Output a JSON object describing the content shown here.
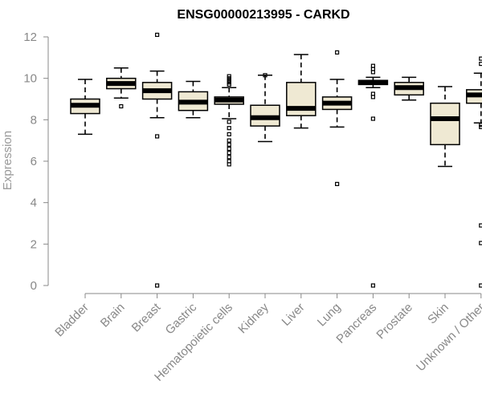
{
  "chart_data": {
    "type": "boxplot",
    "title": "ENSG00000213995 - CARKD",
    "xlabel": "",
    "ylabel": "Expression",
    "ylim": [
      0,
      12
    ],
    "yticks": [
      0,
      2,
      4,
      6,
      8,
      10,
      12
    ],
    "grid": false,
    "box_fill": "#efe9d3",
    "categories": [
      "Bladder",
      "Brain",
      "Breast",
      "Gastric",
      "Hematopoietic cells",
      "Kidney",
      "Liver",
      "Lung",
      "Pancreas",
      "Prostate",
      "Skin",
      "Unknown / Other"
    ],
    "boxes": [
      {
        "min": 7.3,
        "q1": 8.3,
        "median": 8.7,
        "q3": 9.0,
        "max": 9.95,
        "outliers": []
      },
      {
        "min": 9.05,
        "q1": 9.5,
        "median": 9.75,
        "q3": 10.0,
        "max": 10.5,
        "outliers": [
          8.65
        ]
      },
      {
        "min": 8.1,
        "q1": 9.0,
        "median": 9.4,
        "q3": 9.8,
        "max": 10.35,
        "outliers": [
          12.1,
          7.2,
          0.0
        ]
      },
      {
        "min": 8.1,
        "q1": 8.45,
        "median": 8.85,
        "q3": 9.35,
        "max": 9.85,
        "outliers": []
      },
      {
        "min": 8.05,
        "q1": 8.75,
        "median": 8.95,
        "q3": 9.1,
        "max": 9.55,
        "outliers": [
          10.1,
          10.0,
          9.9,
          9.8,
          9.7,
          7.9,
          7.6,
          7.3,
          7.0,
          6.8,
          6.6,
          6.4,
          6.2,
          6.0,
          5.85
        ]
      },
      {
        "min": 6.95,
        "q1": 7.7,
        "median": 8.1,
        "q3": 8.7,
        "max": 10.15,
        "outliers": [
          10.15
        ]
      },
      {
        "min": 7.6,
        "q1": 8.2,
        "median": 8.55,
        "q3": 9.8,
        "max": 11.15,
        "outliers": []
      },
      {
        "min": 7.65,
        "q1": 8.5,
        "median": 8.8,
        "q3": 9.1,
        "max": 9.95,
        "outliers": [
          11.25,
          4.9
        ]
      },
      {
        "min": 9.55,
        "q1": 9.7,
        "median": 9.8,
        "q3": 9.9,
        "max": 10.05,
        "outliers": [
          10.6,
          10.45,
          10.3,
          9.25,
          9.1,
          8.05,
          0.0
        ]
      },
      {
        "min": 8.95,
        "q1": 9.2,
        "median": 9.55,
        "q3": 9.8,
        "max": 10.05,
        "outliers": []
      },
      {
        "min": 5.75,
        "q1": 6.8,
        "median": 8.05,
        "q3": 8.8,
        "max": 9.6,
        "outliers": []
      },
      {
        "min": 7.85,
        "q1": 8.8,
        "median": 9.2,
        "q3": 9.45,
        "max": 10.25,
        "outliers": [
          10.95,
          10.7,
          7.75,
          7.65,
          2.9,
          2.05,
          0.0
        ]
      }
    ]
  }
}
